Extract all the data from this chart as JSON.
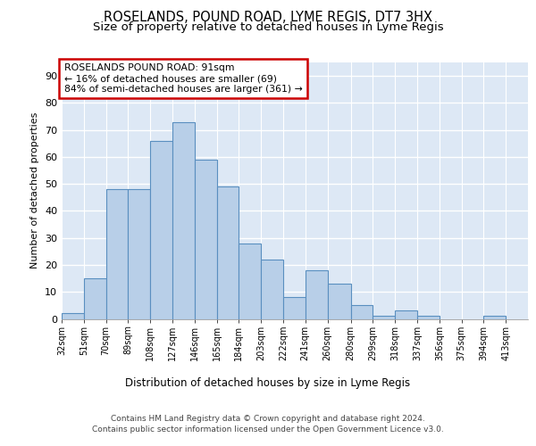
{
  "title": "ROSELANDS, POUND ROAD, LYME REGIS, DT7 3HX",
  "subtitle": "Size of property relative to detached houses in Lyme Regis",
  "xlabel": "Distribution of detached houses by size in Lyme Regis",
  "ylabel": "Number of detached properties",
  "categories": [
    "32sqm",
    "51sqm",
    "70sqm",
    "89sqm",
    "108sqm",
    "127sqm",
    "146sqm",
    "165sqm",
    "184sqm",
    "203sqm",
    "222sqm",
    "241sqm",
    "260sqm",
    "280sqm",
    "299sqm",
    "318sqm",
    "337sqm",
    "356sqm",
    "375sqm",
    "394sqm",
    "413sqm"
  ],
  "annotation_text_line1": "ROSELANDS POUND ROAD: 91sqm",
  "annotation_text_line2": "← 16% of detached houses are smaller (69)",
  "annotation_text_line3": "84% of semi-detached houses are larger (361) →",
  "property_size_sqm": 91,
  "ylim": [
    0,
    95
  ],
  "yticks": [
    0,
    10,
    20,
    30,
    40,
    50,
    60,
    70,
    80,
    90
  ],
  "bar_color": "#b8cfe8",
  "bar_edge_color": "#5a8fc0",
  "annotation_box_color": "#cc0000",
  "background_color": "#dde8f5",
  "grid_color": "#ffffff",
  "footer": "Contains HM Land Registry data © Crown copyright and database right 2024.\nContains public sector information licensed under the Open Government Licence v3.0.",
  "title_fontsize": 10.5,
  "subtitle_fontsize": 9.5,
  "bin_edges": [
    32,
    51,
    70,
    89,
    108,
    127,
    146,
    165,
    184,
    203,
    222,
    241,
    260,
    280,
    299,
    318,
    337,
    356,
    375,
    394,
    413,
    432
  ],
  "bin_counts": [
    2,
    15,
    48,
    48,
    66,
    73,
    59,
    49,
    28,
    22,
    8,
    18,
    13,
    5,
    1,
    3,
    1,
    0,
    0,
    1,
    0
  ]
}
